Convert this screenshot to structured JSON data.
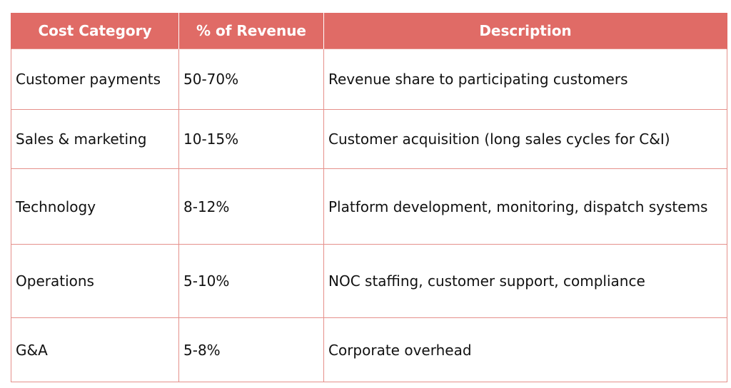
{
  "table": {
    "headers": [
      "Cost Category",
      "% of Revenue",
      "Description"
    ],
    "rows": [
      {
        "category": "Customer payments",
        "percent": "50-70%",
        "description": "Revenue share to participating customers"
      },
      {
        "category": "Sales & marketing",
        "percent": "10-15%",
        "description": "Customer acquisition (long sales cycles for C&I)"
      },
      {
        "category": "Technology",
        "percent": "8-12%",
        "description": "Platform development, monitoring, dispatch systems"
      },
      {
        "category": "Operations",
        "percent": "5-10%",
        "description": "NOC staffing, customer support, compliance"
      },
      {
        "category": "G&A",
        "percent": "5-8%",
        "description": "Corporate overhead"
      }
    ]
  },
  "colors": {
    "header_bg": "#e06b66",
    "header_text": "#ffffff",
    "border": "#e5908b"
  }
}
